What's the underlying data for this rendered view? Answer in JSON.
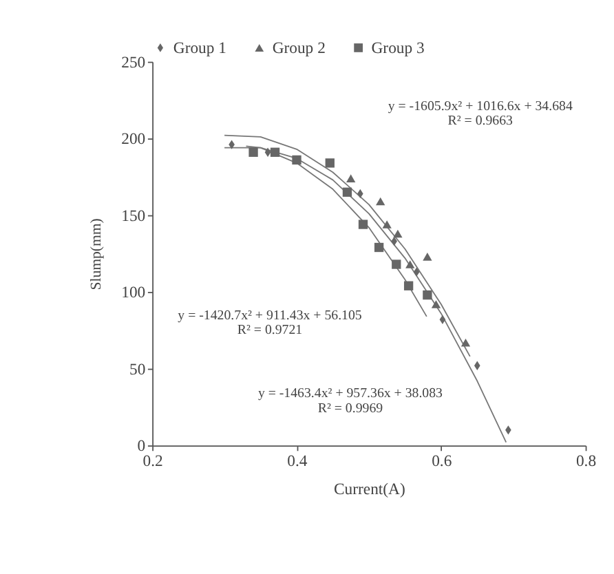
{
  "chart_data": {
    "type": "scatter",
    "xlabel": "Current(A)",
    "ylabel": "Slump(mm)",
    "xlim": [
      0.2,
      0.8
    ],
    "xticks": [
      {
        "value": 0.2,
        "label": "0.2"
      },
      {
        "value": 0.4,
        "label": "0.4"
      },
      {
        "value": 0.6,
        "label": "0.6"
      },
      {
        "value": 0.8,
        "label": "0.8"
      }
    ],
    "ylim": [
      0,
      250
    ],
    "yticks": [
      0,
      50,
      100,
      150,
      200,
      250
    ],
    "grid": false,
    "legend": "top",
    "series": [
      {
        "name": "Group 1",
        "type": "scatter",
        "marker": "diamond",
        "color": "#666666",
        "x": [
          0.31,
          0.36,
          0.488,
          0.535,
          0.566,
          0.602,
          0.65,
          0.693
        ],
        "values": [
          196,
          191,
          164,
          133,
          113,
          82,
          52,
          10
        ]
      },
      {
        "name": "Group 2",
        "type": "scatter",
        "marker": "triangle",
        "color": "#666666",
        "x": [
          0.475,
          0.516,
          0.525,
          0.54,
          0.557,
          0.581,
          0.593,
          0.634
        ],
        "values": [
          174,
          159,
          144,
          138,
          118,
          123,
          92,
          67
        ]
      },
      {
        "name": "Group 3",
        "type": "scatter",
        "marker": "square",
        "color": "#666666",
        "x": [
          0.34,
          0.37,
          0.4,
          0.446,
          0.47,
          0.492,
          0.514,
          0.538,
          0.555,
          0.581
        ],
        "values": [
          191,
          191,
          186,
          184,
          165,
          144,
          129,
          118,
          104,
          98
        ]
      },
      {
        "type": "line",
        "line_style": "solid",
        "color": "#777777",
        "x": [
          0.3,
          0.35,
          0.4,
          0.45,
          0.5,
          0.55,
          0.6,
          0.65,
          0.69
        ],
        "values": [
          194,
          194,
          187,
          173,
          151,
          122,
          86,
          42,
          2
        ]
      },
      {
        "type": "line",
        "line_style": "solid",
        "color": "#777777",
        "x": [
          0.3,
          0.35,
          0.4,
          0.45,
          0.5,
          0.55,
          0.6,
          0.64
        ],
        "values": [
          202,
          201,
          193,
          178,
          157,
          128,
          92,
          58
        ]
      },
      {
        "type": "line",
        "line_style": "solid",
        "color": "#777777",
        "x": [
          0.33,
          0.35,
          0.4,
          0.45,
          0.5,
          0.55,
          0.58
        ],
        "values": [
          195,
          194,
          184,
          167,
          142,
          108,
          84
        ]
      }
    ],
    "annotations": [
      "y = -1605.9x² + 1016.6x + 34.684",
      "R² = 0.9663",
      "y = -1420.7x² + 911.43x + 56.105",
      "R² = 0.9721",
      "y = -1463.4x² + 957.36x + 38.083",
      "R² = 0.9969"
    ]
  }
}
